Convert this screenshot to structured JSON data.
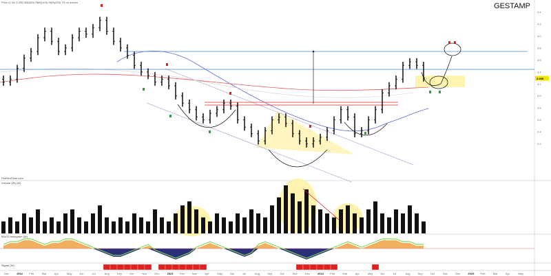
{
  "header": {
    "legend": "Price (1 W) 3.295  SMA(50)  SMA(100)  SMA(200)  TS on screen",
    "symbol": "GESTAMP"
  },
  "panels": {
    "volume_label": "Volume (W) (W)",
    "indicator_label": "MACD histogram (W)",
    "bottom_label": "Signal (W)",
    "source": "ProRealTime.com"
  },
  "colors": {
    "bars": "#000000",
    "sma_blue": "#5b6fd6",
    "sma_red": "#e85a5a",
    "resistance": "#4a86c8",
    "zone": "#fff3b0",
    "last_price_bg": "#f2e600",
    "signal_red": "#e02020",
    "signal_green": "#2ea043",
    "indicator_navy": "#2b2f7a",
    "indicator_orange": "#f0b060",
    "indicator_green": "#7ed957"
  },
  "chart_data": {
    "type": "bar",
    "subtype": "ohlc",
    "last_price": "3.295",
    "y_ticks": [
      "4.4",
      "4.2",
      "4.0",
      "3.8",
      "3.6",
      "3.4",
      "3.2",
      "3.0",
      "2.8",
      "2.6",
      "2.4",
      "2.2"
    ],
    "ylim": [
      1.6,
      4.6
    ],
    "x_ticks": [
      "Dec",
      "2022",
      "Feb",
      "Mar",
      "Apr",
      "May",
      "Jun",
      "Jul",
      "Aug",
      "Sep",
      "Oct",
      "Nov",
      "Dec",
      "2023",
      "Feb",
      "Mar",
      "Apr",
      "May",
      "Jun",
      "Jul",
      "Aug",
      "Sep",
      "Oct",
      "Nov",
      "Dec",
      "2024",
      "Feb",
      "Mar",
      "Apr",
      "May",
      "Jun",
      "Jul",
      "Aug",
      "Sep",
      "Oct",
      "Nov",
      "Dec",
      "2025",
      "Feb",
      "Mar",
      "Apr",
      "May"
    ],
    "closes": [
      3.23,
      3.28,
      3.46,
      3.63,
      3.74,
      3.97,
      4.08,
      3.91,
      3.74,
      3.8,
      3.97,
      4.08,
      4.03,
      4.14,
      4.26,
      4.08,
      3.91,
      3.8,
      3.68,
      3.51,
      3.4,
      3.34,
      3.23,
      3.28,
      3.17,
      3.0,
      2.88,
      2.77,
      2.65,
      2.6,
      2.71,
      2.77,
      2.88,
      2.83,
      2.6,
      2.48,
      2.37,
      2.25,
      2.42,
      2.6,
      2.65,
      2.54,
      2.37,
      2.25,
      2.2,
      2.25,
      2.31,
      2.42,
      2.6,
      2.77,
      2.65,
      2.37,
      2.42,
      2.6,
      2.77,
      3.05,
      3.17,
      3.28,
      3.51,
      3.57,
      3.51,
      3.3
    ],
    "volume": [
      3,
      4,
      3,
      5,
      4,
      6,
      3,
      4,
      3,
      5,
      6,
      4,
      3,
      5,
      7,
      4,
      3,
      4,
      3,
      5,
      4,
      3,
      6,
      4,
      3,
      5,
      7,
      8,
      6,
      4,
      3,
      5,
      4,
      3,
      5,
      4,
      6,
      5,
      4,
      7,
      9,
      12,
      10,
      8,
      11,
      7,
      6,
      5,
      4,
      6,
      7,
      5,
      4,
      6,
      8,
      5,
      4,
      6,
      5,
      7,
      5,
      3
    ],
    "indicator": [
      1,
      2,
      2,
      3,
      3,
      2,
      1,
      2,
      2,
      3,
      3,
      2,
      1,
      0,
      -1,
      -2,
      -3,
      -3,
      -2,
      -1,
      0,
      1,
      -1,
      -2,
      -3,
      -4,
      -3,
      -2,
      0,
      1,
      2,
      1,
      0,
      -1,
      -2,
      -3,
      -2,
      1,
      2,
      1,
      0,
      -1,
      -2,
      -3,
      -4,
      -3,
      -2,
      -1,
      0,
      1,
      2,
      1,
      0,
      1,
      2,
      3,
      3,
      3,
      2,
      2,
      1,
      1
    ],
    "signals": [
      0,
      0,
      0,
      0,
      0,
      0,
      0,
      0,
      0,
      0,
      0,
      0,
      0,
      0,
      0,
      1,
      1,
      1,
      1,
      1,
      1,
      1,
      0,
      1,
      1,
      1,
      1,
      1,
      1,
      1,
      0,
      0,
      0,
      0,
      0,
      0,
      0,
      0,
      0,
      0,
      0,
      0,
      0,
      1,
      1,
      1,
      1,
      1,
      1,
      0,
      0,
      0,
      0,
      0,
      1,
      0,
      0,
      0,
      0,
      0,
      0,
      0
    ]
  }
}
